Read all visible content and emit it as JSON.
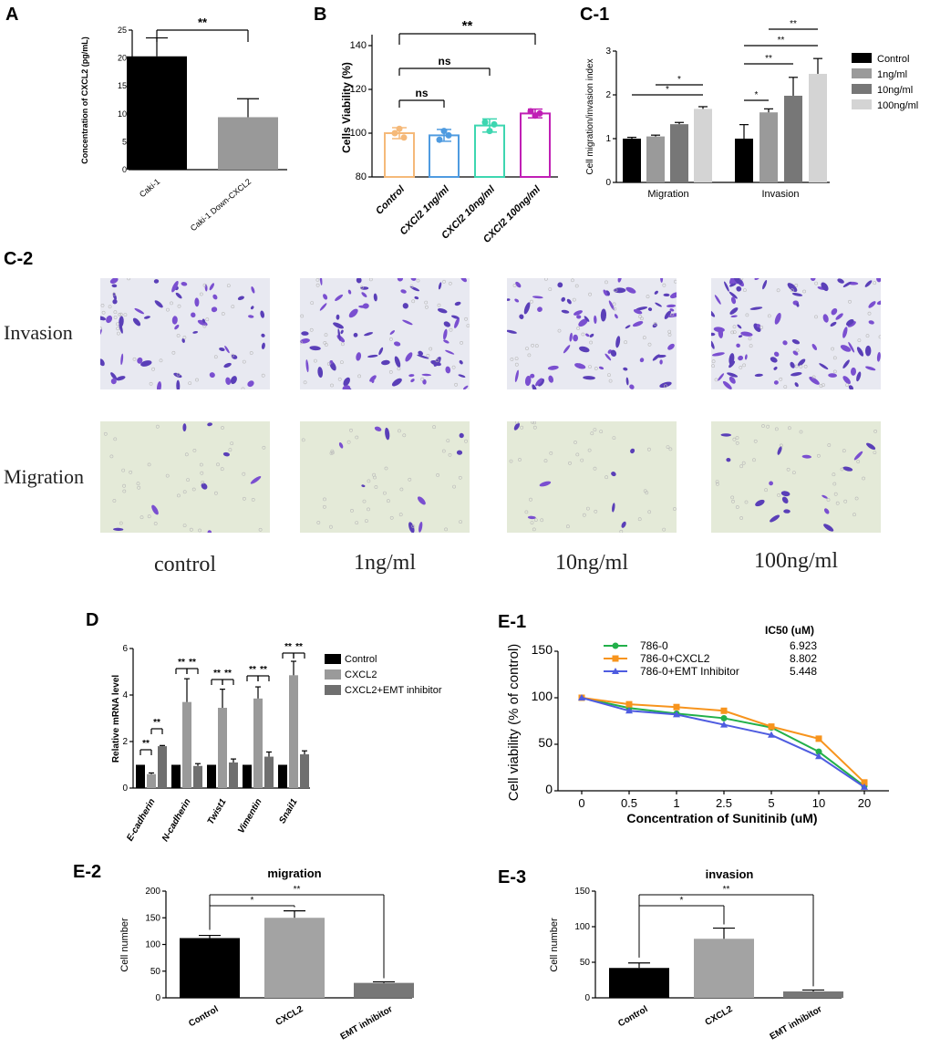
{
  "panels": {
    "A": {
      "letter": "A",
      "ylabel": "Concentration of CXCL2 (pg/mL)",
      "ylim": [
        0,
        25
      ],
      "yticks": [
        0,
        5,
        10,
        15,
        20,
        25
      ],
      "sig": "**",
      "bars": [
        {
          "label": "Caki-1",
          "value": 20.3,
          "err": 3.3,
          "color": "#000000"
        },
        {
          "label": "Caki-1 Down-CXCL2",
          "value": 9.4,
          "err": 3.3,
          "color": "#999999"
        }
      ]
    },
    "B": {
      "letter": "B",
      "ylabel": "Cells Viability (%)",
      "ylim": [
        80,
        145
      ],
      "yticks": [
        80,
        100,
        120,
        140
      ],
      "bars": [
        {
          "label": "Control",
          "value": 100,
          "err": 2.5,
          "color": "#f5b979"
        },
        {
          "label": "CXCl2 1ng/ml",
          "value": 99,
          "err": 2.7,
          "color": "#4f9be0"
        },
        {
          "label": "CXCl2 10ng/ml",
          "value": 103.5,
          "err": 3,
          "color": "#3dd6b0"
        },
        {
          "label": "CXCl2 100ng/ml",
          "value": 109,
          "err": 2,
          "color": "#c01fb5"
        }
      ],
      "points": [
        [
          100,
          102,
          98
        ],
        [
          97,
          101,
          99
        ],
        [
          105,
          101,
          104
        ],
        [
          110,
          108,
          109
        ]
      ],
      "sig": [
        {
          "from": 0,
          "to": 1,
          "text": "ns"
        },
        {
          "from": 0,
          "to": 2,
          "text": "ns"
        },
        {
          "from": 0,
          "to": 3,
          "text": "**"
        }
      ]
    },
    "C1": {
      "letter": "C-1",
      "ylabel": "Cell migration/invasion index",
      "ylim": [
        0,
        3
      ],
      "yticks": [
        0,
        1,
        2,
        3
      ],
      "groups": [
        "Migration",
        "Invasion"
      ],
      "series": [
        {
          "name": "Control",
          "color": "#000000",
          "values": [
            1.0,
            1.0
          ],
          "err": [
            0.03,
            0.32
          ]
        },
        {
          "name": "1ng/ml",
          "color": "#9a9a9a",
          "values": [
            1.05,
            1.6
          ],
          "err": [
            0.03,
            0.08
          ]
        },
        {
          "name": "10ng/ml",
          "color": "#777777",
          "values": [
            1.33,
            1.98
          ],
          "err": [
            0.04,
            0.42
          ]
        },
        {
          "name": "100ng/ml",
          "color": "#d4d4d4",
          "values": [
            1.68,
            2.48
          ],
          "err": [
            0.05,
            0.35
          ]
        }
      ],
      "sig": [
        {
          "g": 0,
          "from": 0,
          "to": 3,
          "text": "*",
          "level": 1
        },
        {
          "g": 0,
          "from": 1,
          "to": 3,
          "text": "*",
          "level": 0
        },
        {
          "g": 1,
          "from": 0,
          "to": 1,
          "text": "*",
          "level": 0
        },
        {
          "g": 1,
          "from": 0,
          "to": 2,
          "text": "**",
          "level": 1
        },
        {
          "g": 1,
          "from": 0,
          "to": 3,
          "text": "**",
          "level": 2
        },
        {
          "g": 1,
          "from": 1,
          "to": 3,
          "text": "**",
          "level": 3
        }
      ]
    },
    "C2": {
      "letter": "C-2",
      "rows": [
        "Invasion",
        "Migration"
      ],
      "cols": [
        "control",
        "1ng/ml",
        "10ng/ml",
        "100ng/ml"
      ]
    },
    "D": {
      "letter": "D",
      "ylabel": "Relative mRNA level",
      "ylim": [
        0,
        6
      ],
      "yticks": [
        0,
        2,
        4,
        6
      ],
      "categories": [
        "E-cadherin",
        "N-cadherin",
        "Twist1",
        "Vimentin",
        "Snail1"
      ],
      "series": [
        {
          "name": "Control",
          "color": "#000000",
          "values": [
            1,
            1,
            1,
            1,
            1
          ],
          "err": [
            0,
            0,
            0,
            0,
            0
          ]
        },
        {
          "name": "CXCL2",
          "color": "#9a9a9a",
          "values": [
            0.6,
            3.7,
            3.45,
            3.85,
            4.85
          ],
          "err": [
            0.05,
            1.0,
            0.8,
            0.5,
            0.6
          ]
        },
        {
          "name": "CXCL2+EMT inhibitor",
          "color": "#6f6f6f",
          "values": [
            1.8,
            0.95,
            1.1,
            1.35,
            1.45
          ],
          "err": [
            0.03,
            0.1,
            0.15,
            0.2,
            0.15
          ]
        }
      ]
    },
    "E1": {
      "letter": "E-1",
      "ylabel": "Cell viability (% of control)",
      "xlabel": "Concentration of Sunitinib (uM)",
      "ic50_header": "IC50 (uM)",
      "ylim": [
        0,
        150
      ],
      "yticks": [
        0,
        50,
        100,
        150
      ],
      "x": [
        "0",
        "0.5",
        "1",
        "2.5",
        "5",
        "10",
        "20"
      ],
      "series": [
        {
          "name": "786-0",
          "ic50": "6.923",
          "color": "#22b04a",
          "marker": "circle",
          "values": [
            100,
            89,
            83,
            78,
            68,
            42,
            5
          ]
        },
        {
          "name": "786-0+CXCL2",
          "ic50": "8.802",
          "color": "#f7941d",
          "marker": "square",
          "values": [
            100,
            93,
            90,
            86,
            69,
            56,
            9
          ]
        },
        {
          "name": "786-0+EMT Inhibitor",
          "ic50": "5.448",
          "color": "#4e5ce0",
          "marker": "triangle",
          "values": [
            100,
            86,
            82,
            71,
            60,
            37,
            4
          ]
        }
      ]
    },
    "E2": {
      "letter": "E-2",
      "title": "migration",
      "ylabel": "Cell number",
      "ylim": [
        0,
        200
      ],
      "yticks": [
        0,
        50,
        100,
        150,
        200
      ],
      "bars": [
        {
          "label": "Control",
          "value": 112,
          "err": 5,
          "color": "#000000"
        },
        {
          "label": "CXCL2",
          "value": 150,
          "err": 13,
          "color": "#a3a3a3"
        },
        {
          "label": "EMT inhibitor",
          "value": 28,
          "err": 2,
          "color": "#777777"
        }
      ],
      "sig": [
        {
          "from": 0,
          "to": 1,
          "text": "*"
        },
        {
          "from": 0,
          "to": 2,
          "text": "**"
        }
      ]
    },
    "E3": {
      "letter": "E-3",
      "title": "invasion",
      "ylabel": "Cell number",
      "ylim": [
        0,
        150
      ],
      "yticks": [
        0,
        50,
        100,
        150
      ],
      "bars": [
        {
          "label": "Control",
          "value": 42,
          "err": 7,
          "color": "#000000"
        },
        {
          "label": "CXCL2",
          "value": 83,
          "err": 15,
          "color": "#a3a3a3"
        },
        {
          "label": "EMT inhibitor",
          "value": 9,
          "err": 2,
          "color": "#777777"
        }
      ],
      "sig": [
        {
          "from": 0,
          "to": 1,
          "text": "*"
        },
        {
          "from": 0,
          "to": 2,
          "text": "**"
        }
      ]
    }
  },
  "chart_data": [
    {
      "type": "bar",
      "title": "",
      "categories": [
        "Caki-1",
        "Caki-1 Down-CXCL2"
      ],
      "values": [
        20.3,
        9.4
      ],
      "ylabel": "Concentration of CXCL2 (pg/mL)",
      "ylim": [
        0,
        25
      ]
    },
    {
      "type": "bar",
      "categories": [
        "Control",
        "CXCl2 1ng/ml",
        "CXCl2 10ng/ml",
        "CXCl2 100ng/ml"
      ],
      "values": [
        100,
        99,
        103.5,
        109
      ],
      "ylabel": "Cells Viability (%)",
      "ylim": [
        80,
        145
      ]
    },
    {
      "type": "bar",
      "categories": [
        "Migration",
        "Invasion"
      ],
      "series": [
        {
          "name": "Control",
          "values": [
            1.0,
            1.0
          ]
        },
        {
          "name": "1ng/ml",
          "values": [
            1.05,
            1.6
          ]
        },
        {
          "name": "10ng/ml",
          "values": [
            1.33,
            1.98
          ]
        },
        {
          "name": "100ng/ml",
          "values": [
            1.68,
            2.48
          ]
        }
      ],
      "ylabel": "Cell migration/invasion index",
      "ylim": [
        0,
        3
      ]
    },
    {
      "type": "bar",
      "categories": [
        "E-cadherin",
        "N-cadherin",
        "Twist1",
        "Vimentin",
        "Snail1"
      ],
      "series": [
        {
          "name": "Control",
          "values": [
            1,
            1,
            1,
            1,
            1
          ]
        },
        {
          "name": "CXCL2",
          "values": [
            0.6,
            3.7,
            3.45,
            3.85,
            4.85
          ]
        },
        {
          "name": "CXCL2+EMT inhibitor",
          "values": [
            1.8,
            0.95,
            1.1,
            1.35,
            1.45
          ]
        }
      ],
      "ylabel": "Relative mRNA level",
      "ylim": [
        0,
        6
      ]
    },
    {
      "type": "line",
      "x": [
        "0",
        "0.5",
        "1",
        "2.5",
        "5",
        "10",
        "20"
      ],
      "series": [
        {
          "name": "786-0",
          "values": [
            100,
            89,
            83,
            78,
            68,
            42,
            5
          ]
        },
        {
          "name": "786-0+CXCL2",
          "values": [
            100,
            93,
            90,
            86,
            69,
            56,
            9
          ]
        },
        {
          "name": "786-0+EMT Inhibitor",
          "values": [
            100,
            86,
            82,
            71,
            60,
            37,
            4
          ]
        }
      ],
      "xlabel": "Concentration of Sunitinib (uM)",
      "ylabel": "Cell viability (% of control)",
      "ylim": [
        0,
        150
      ]
    },
    {
      "type": "bar",
      "title": "migration",
      "categories": [
        "Control",
        "CXCL2",
        "EMT inhibitor"
      ],
      "values": [
        112,
        150,
        28
      ],
      "ylabel": "Cell number",
      "ylim": [
        0,
        200
      ]
    },
    {
      "type": "bar",
      "title": "invasion",
      "categories": [
        "Control",
        "CXCL2",
        "EMT inhibitor"
      ],
      "values": [
        42,
        83,
        9
      ],
      "ylabel": "Cell number",
      "ylim": [
        0,
        150
      ]
    }
  ]
}
